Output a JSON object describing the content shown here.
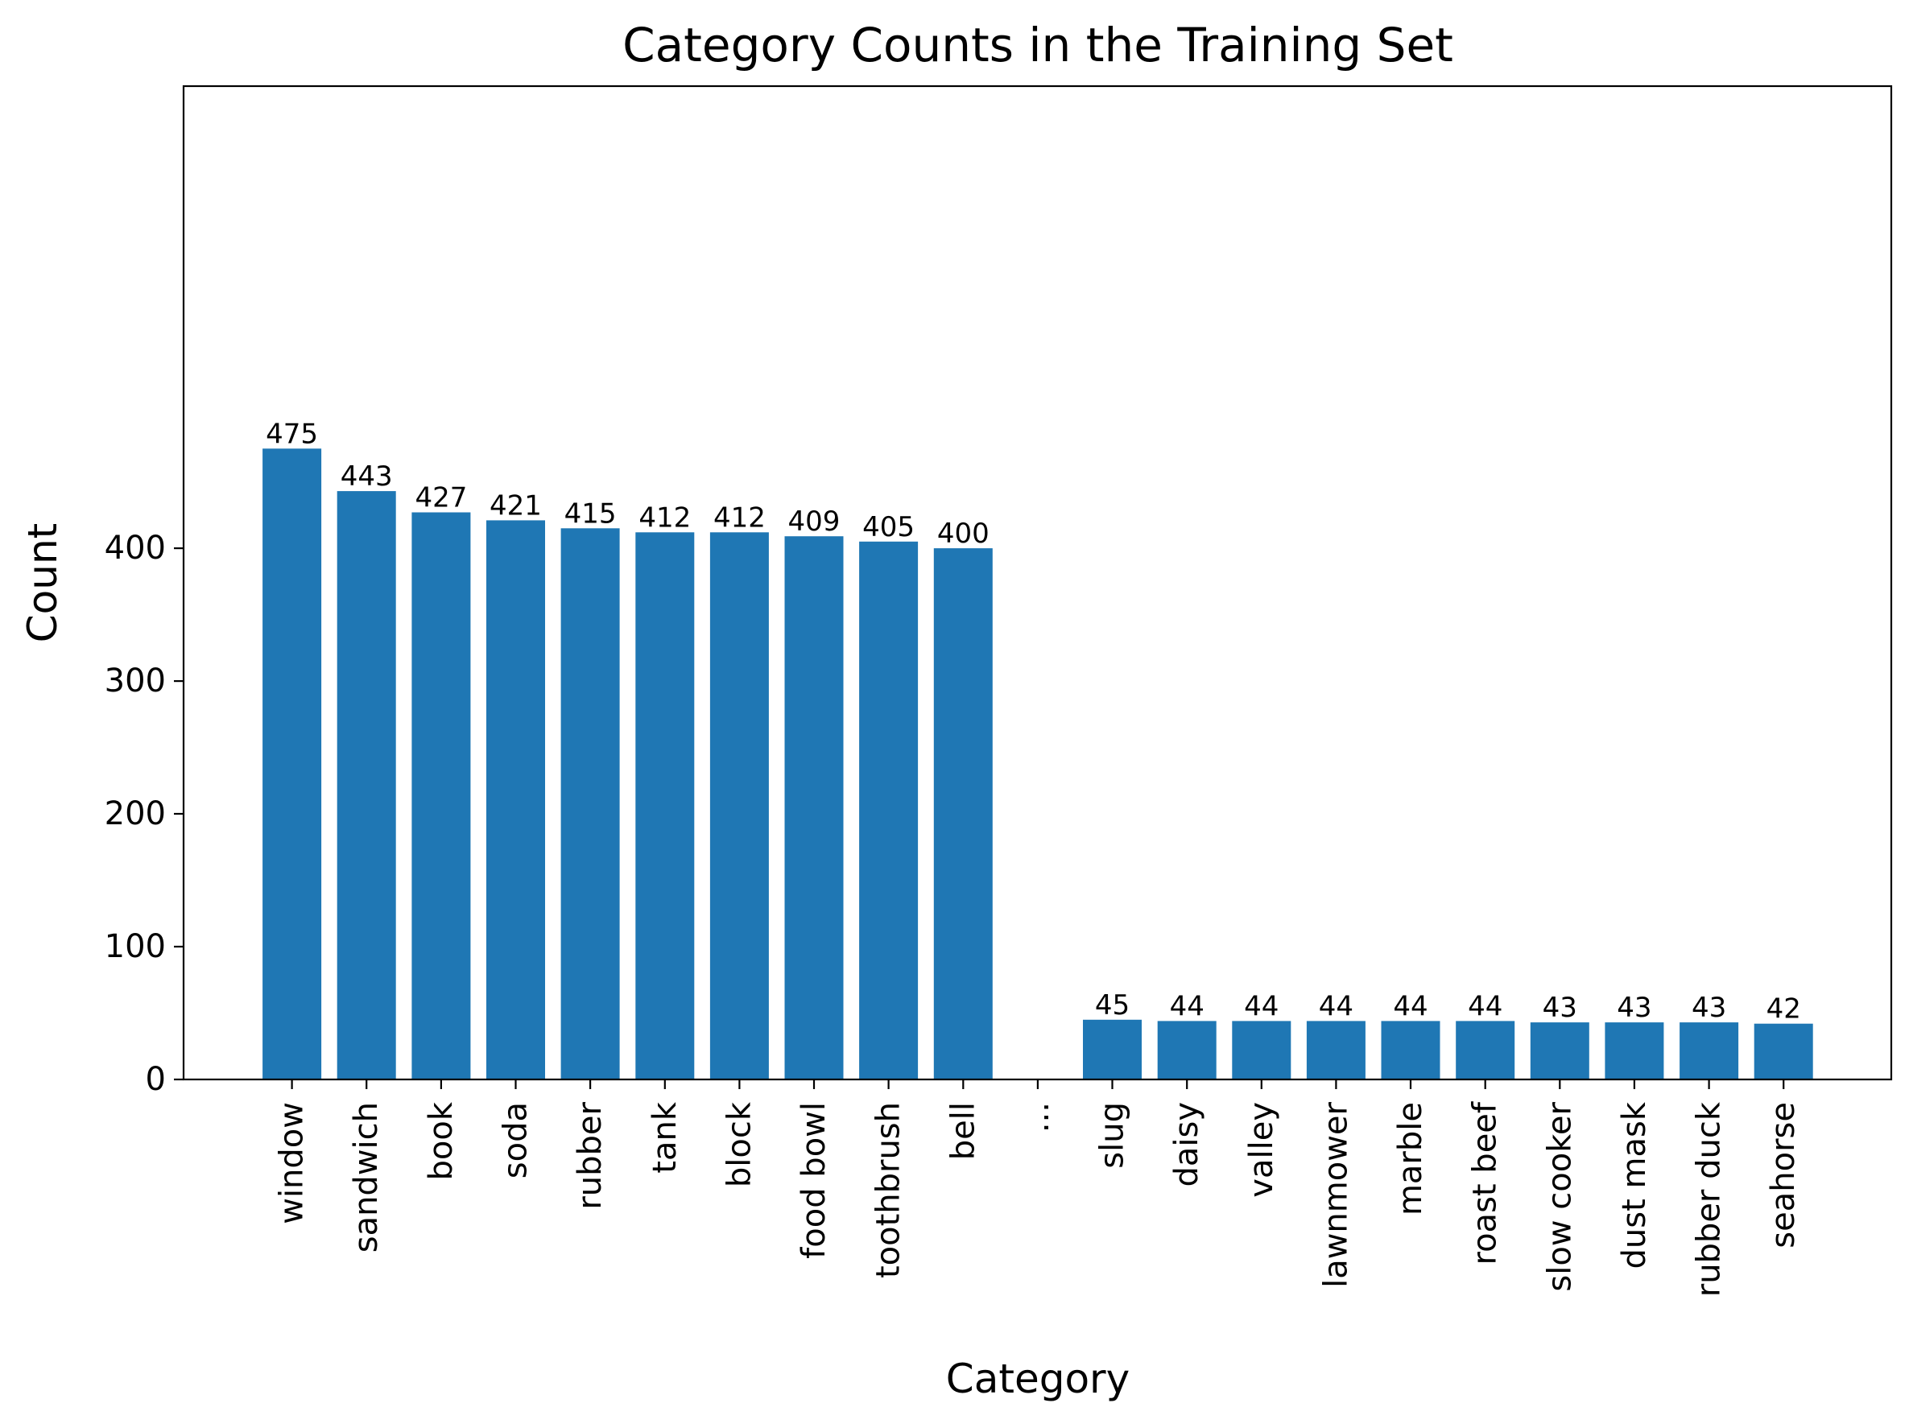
{
  "chart_data": {
    "type": "bar",
    "title": "Category Counts in the Training Set",
    "xlabel": "Category",
    "ylabel": "Count",
    "ylim": [
      0,
      500
    ],
    "yticks": [
      0,
      100,
      200,
      300,
      400
    ],
    "grid": false,
    "bar_color": "#1f77b4",
    "categories": [
      "window",
      "sandwich",
      "book",
      "soda",
      "rubber",
      "tank",
      "block",
      "food bowl",
      "toothbrush",
      "bell",
      "...",
      "slug",
      "daisy",
      "valley",
      "lawnmower",
      "marble",
      "roast beef",
      "slow cooker",
      "dust mask",
      "rubber duck",
      "seahorse"
    ],
    "values": [
      475,
      443,
      427,
      421,
      415,
      412,
      412,
      409,
      405,
      400,
      null,
      45,
      44,
      44,
      44,
      44,
      44,
      43,
      43,
      43,
      42
    ]
  }
}
